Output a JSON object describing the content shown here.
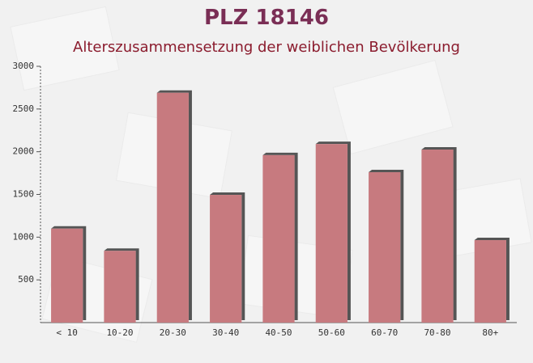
{
  "chart_data": {
    "type": "bar",
    "title": "PLZ 18146",
    "subtitle": "Alterszusammensetzung der weiblichen Bevölkerung",
    "categories": [
      "< 10",
      "10-20",
      "20-30",
      "30-40",
      "40-50",
      "50-60",
      "60-70",
      "70-80",
      "80+"
    ],
    "values": [
      1100,
      840,
      2690,
      1495,
      1960,
      2090,
      1760,
      2025,
      965
    ],
    "color": "#c77a7f",
    "ylim": [
      0,
      3000
    ],
    "yticks": [
      500,
      1000,
      1500,
      2000,
      2500,
      3000
    ]
  }
}
